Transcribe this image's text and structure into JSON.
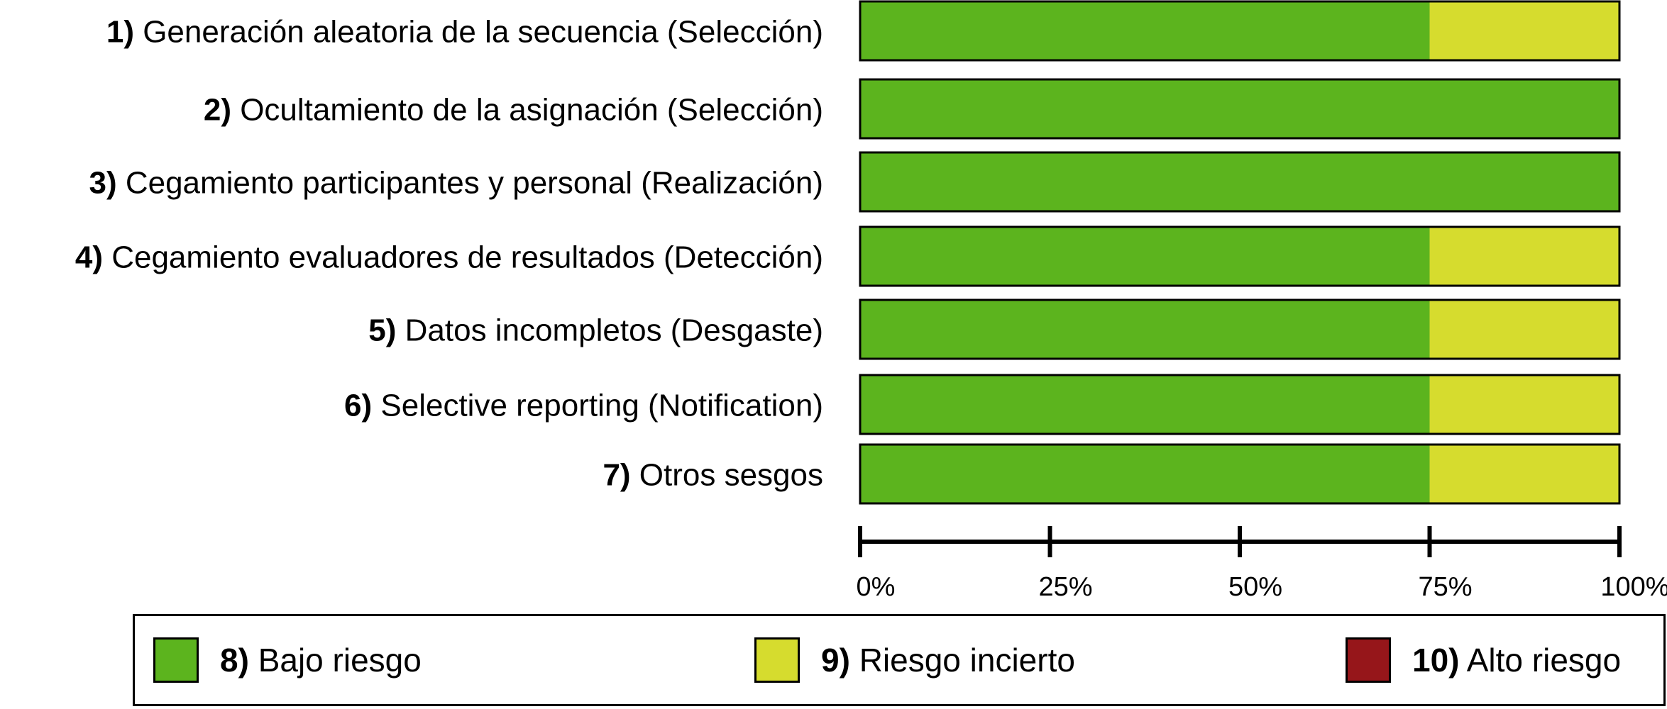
{
  "chart_data": {
    "type": "bar",
    "stacked": true,
    "orientation": "horizontal",
    "categories": [
      {
        "num": "1)",
        "text": "Generación aleatoria de la secuencia (Selección)"
      },
      {
        "num": "2)",
        "text": " Ocultamiento de la asignación (Selección)"
      },
      {
        "num": "3)",
        "text": "Cegamiento participantes y personal (Realización)"
      },
      {
        "num": "4)",
        "text": "Cegamiento evaluadores de resultados (Detección)"
      },
      {
        "num": "5)",
        "text": "Datos incompletos (Desgaste)"
      },
      {
        "num": "6)",
        "text": "Selective reporting (Notification)"
      },
      {
        "num": "7)",
        "text": "Otros sesgos"
      }
    ],
    "series": [
      {
        "num": "8)",
        "name": "Bajo riesgo",
        "color": "#5cb41e",
        "values": [
          75,
          100,
          100,
          75,
          75,
          75,
          75
        ]
      },
      {
        "num": "9)",
        "name": "Riesgo incierto",
        "color": "#d6dc2e",
        "values": [
          25,
          0,
          0,
          25,
          25,
          25,
          25
        ]
      },
      {
        "num": "10)",
        "name": "Alto riesgo",
        "color": "#96161a",
        "values": [
          0,
          0,
          0,
          0,
          0,
          0,
          0
        ]
      }
    ],
    "xlim": [
      0,
      100
    ],
    "xticks": [
      "0%",
      "25%",
      "50%",
      "75%",
      "100%"
    ],
    "legend_position": "bottom",
    "grid": false
  }
}
